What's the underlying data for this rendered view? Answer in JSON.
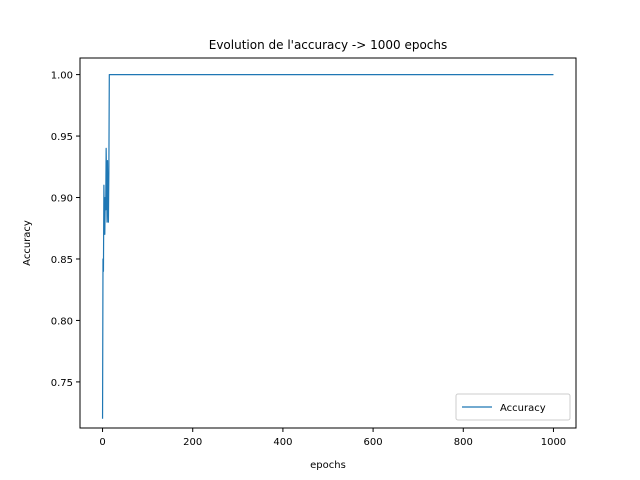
{
  "chart_data": {
    "type": "line",
    "title": "Evolution de l'accuracy -> 1000 epochs",
    "xlabel": "epochs",
    "ylabel": "Accuracy",
    "xlim": [
      -50,
      1050
    ],
    "ylim": [
      0.7125,
      1.0135
    ],
    "xticks": [
      0,
      200,
      400,
      600,
      800,
      1000
    ],
    "xtick_labels": [
      "0",
      "200",
      "400",
      "600",
      "800",
      "1000"
    ],
    "yticks": [
      0.75,
      0.8,
      0.85,
      0.9,
      0.95,
      1.0
    ],
    "ytick_labels": [
      "0.75",
      "0.80",
      "0.85",
      "0.90",
      "0.95",
      "1.00"
    ],
    "grid": false,
    "legend_position": "lower-right",
    "series": [
      {
        "name": "Accuracy",
        "color": "#1f77b4",
        "x": [
          0,
          1,
          2,
          3,
          4,
          5,
          6,
          7,
          8,
          9,
          10,
          11,
          12,
          13,
          14,
          15,
          16,
          17,
          18,
          19,
          20,
          1000
        ],
        "y": [
          0.72,
          0.85,
          0.84,
          0.91,
          0.88,
          0.87,
          0.9,
          0.89,
          0.94,
          0.91,
          0.88,
          0.93,
          0.9,
          0.88,
          0.92,
          1.0,
          1.0,
          1.0,
          1.0,
          1.0,
          1.0,
          1.0
        ]
      }
    ]
  }
}
